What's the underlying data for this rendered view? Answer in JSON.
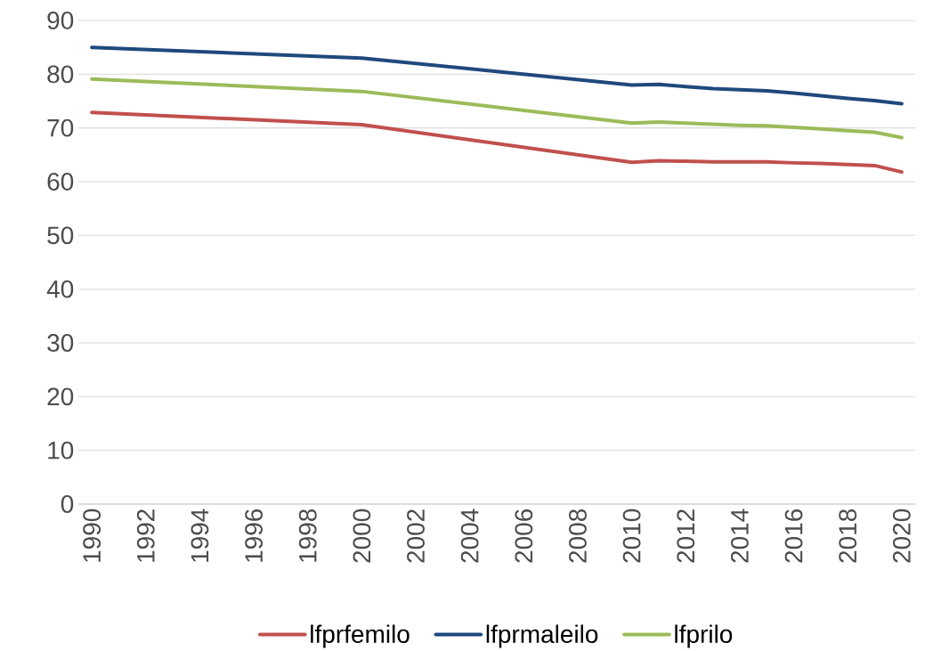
{
  "chart_data": {
    "type": "line",
    "x": [
      1990,
      2000,
      2010,
      2011,
      2012,
      2013,
      2014,
      2015,
      2016,
      2017,
      2018,
      2019,
      2020
    ],
    "series": [
      {
        "name": "lfprfemilo",
        "color": "#c0504d",
        "values": [
          72.9,
          70.6,
          63.6,
          63.9,
          63.8,
          63.7,
          63.7,
          63.7,
          63.5,
          63.4,
          63.2,
          63.0,
          61.8
        ]
      },
      {
        "name": "lfprmaleilo",
        "color": "#1f497d",
        "values": [
          85.0,
          83.0,
          78.0,
          78.1,
          77.7,
          77.3,
          77.1,
          76.9,
          76.5,
          76.0,
          75.5,
          75.1,
          74.5
        ]
      },
      {
        "name": "lfprilo",
        "color": "#9bbb59",
        "values": [
          79.1,
          76.8,
          70.9,
          71.1,
          70.9,
          70.7,
          70.5,
          70.4,
          70.1,
          69.8,
          69.5,
          69.2,
          68.2
        ]
      }
    ],
    "xlim": [
      1989.5,
      2020.5
    ],
    "xticks": [
      1990,
      1992,
      1994,
      1996,
      1998,
      2000,
      2002,
      2004,
      2006,
      2008,
      2010,
      2012,
      2014,
      2016,
      2018,
      2020
    ],
    "ylim": [
      0,
      90
    ],
    "yticks": [
      0,
      10,
      20,
      30,
      40,
      50,
      60,
      70,
      80,
      90
    ],
    "grid": "y",
    "legend": "bottom"
  }
}
